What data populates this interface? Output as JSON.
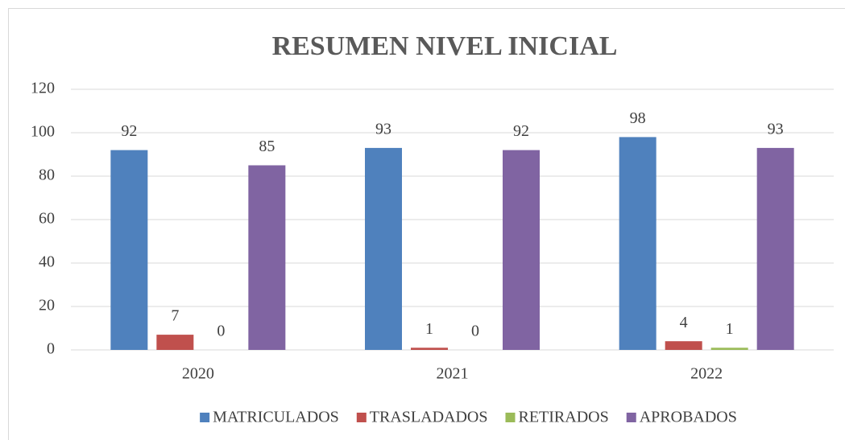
{
  "chart_data": {
    "type": "bar",
    "title": "RESUMEN NIVEL INICIAL",
    "categories": [
      "2020",
      "2021",
      "2022"
    ],
    "series": [
      {
        "name": "MATRICULADOS",
        "color": "#4f81bd",
        "values": [
          92,
          93,
          98
        ]
      },
      {
        "name": "TRASLADADOS",
        "color": "#c0504d",
        "values": [
          7,
          1,
          4
        ]
      },
      {
        "name": "RETIRADOS",
        "color": "#9bbb59",
        "values": [
          0,
          0,
          1
        ]
      },
      {
        "name": "APROBADOS",
        "color": "#8064a2",
        "values": [
          85,
          92,
          93
        ]
      }
    ],
    "ylim": [
      0,
      120
    ],
    "yticks": [
      0,
      20,
      40,
      60,
      80,
      100,
      120
    ],
    "grid": true,
    "legend": "bottom"
  }
}
